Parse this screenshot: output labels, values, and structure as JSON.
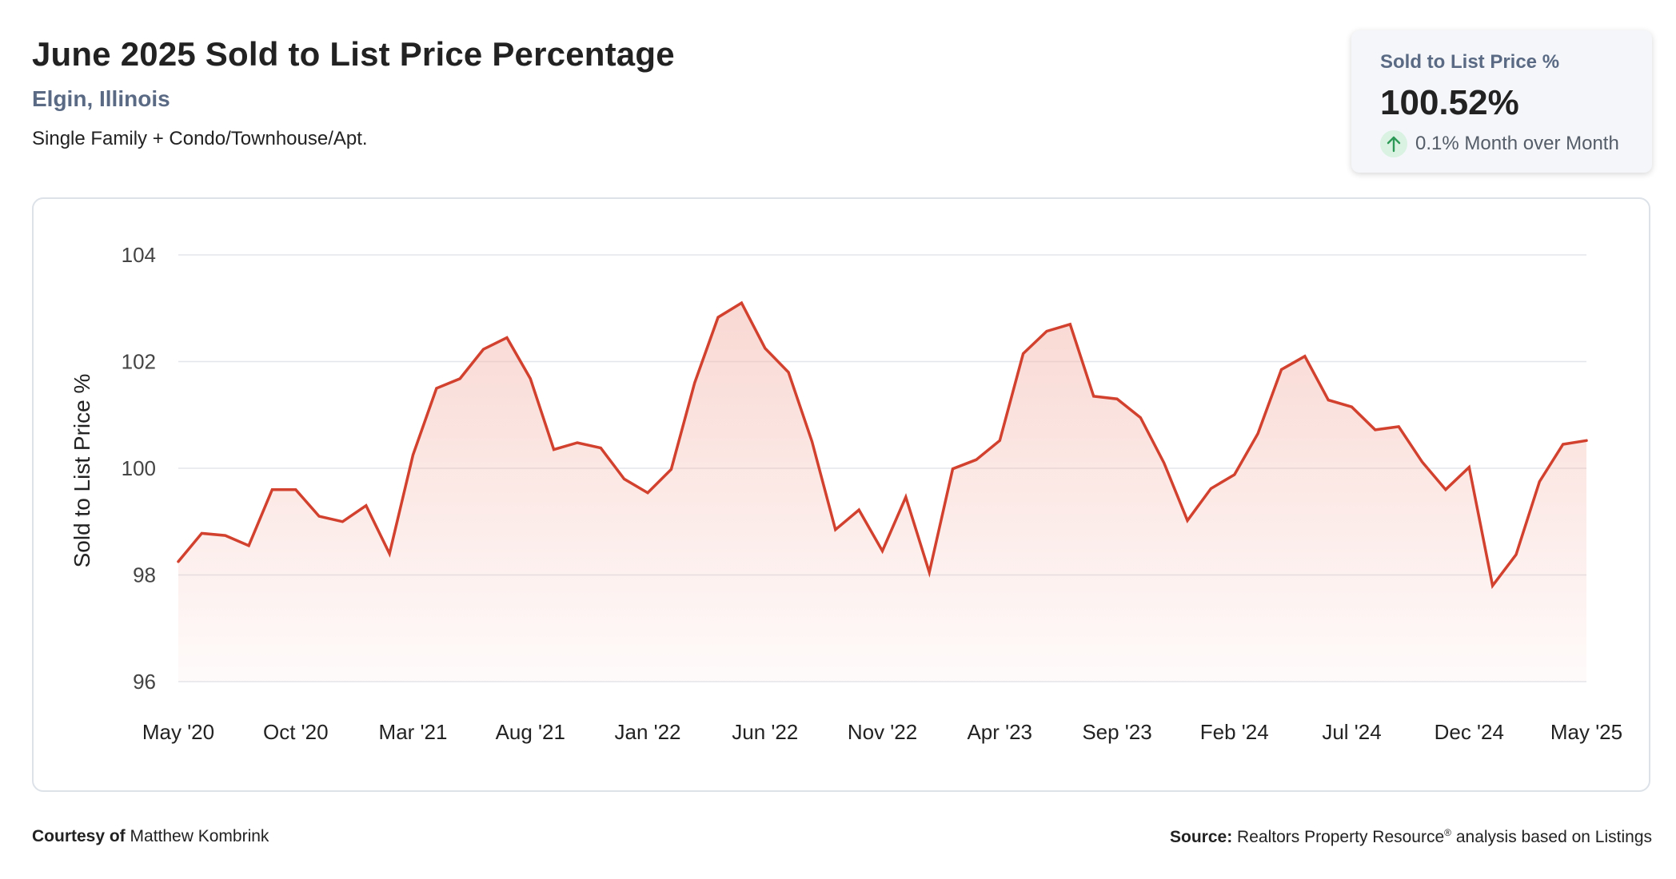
{
  "header": {
    "title": "June 2025 Sold to List Price Percentage",
    "subtitle": "Elgin, Illinois",
    "description": "Single Family + Condo/Townhouse/Apt."
  },
  "kpi": {
    "label": "Sold to List Price %",
    "value": "100.52%",
    "change_text": "0.1% Month over Month",
    "change_icon": "arrow-up-icon",
    "change_color": "#2e9a57"
  },
  "footer": {
    "courtesy_label": "Courtesy of",
    "courtesy_name": "Matthew Kombrink",
    "source_label": "Source:",
    "source_text_a": "Realtors Property Resource",
    "source_sup": "®",
    "source_text_b": "analysis based on Listings"
  },
  "colors": {
    "line": "#d2402e",
    "fill_top": "#f4b8ae",
    "grid": "#e3e6ea"
  },
  "chart_data": {
    "type": "area",
    "ylabel": "Sold to List Price %",
    "ylim": [
      96,
      104
    ],
    "yticks": [
      104,
      102,
      100,
      98,
      96
    ],
    "xtick_labels": [
      "May '20",
      "Oct '20",
      "Mar '21",
      "Aug '21",
      "Jan '22",
      "Jun '22",
      "Nov '22",
      "Apr '23",
      "Sep '23",
      "Feb '24",
      "Jul '24",
      "Dec '24",
      "May '25"
    ],
    "grid": true,
    "x": [
      "May '20",
      "Jun '20",
      "Jul '20",
      "Aug '20",
      "Sep '20",
      "Oct '20",
      "Nov '20",
      "Dec '20",
      "Jan '21",
      "Feb '21",
      "Mar '21",
      "Apr '21",
      "May '21",
      "Jun '21",
      "Jul '21",
      "Aug '21",
      "Sep '21",
      "Oct '21",
      "Nov '21",
      "Dec '21",
      "Jan '22",
      "Feb '22",
      "Mar '22",
      "Apr '22",
      "May '22",
      "Jun '22",
      "Jul '22",
      "Aug '22",
      "Sep '22",
      "Oct '22",
      "Nov '22",
      "Dec '22",
      "Jan '23",
      "Feb '23",
      "Mar '23",
      "Apr '23",
      "May '23",
      "Jun '23",
      "Jul '23",
      "Aug '23",
      "Sep '23",
      "Oct '23",
      "Nov '23",
      "Dec '23",
      "Jan '24",
      "Feb '24",
      "Mar '24",
      "Apr '24",
      "May '24",
      "Jun '24",
      "Jul '24",
      "Aug '24",
      "Sep '24",
      "Oct '24",
      "Nov '24",
      "Dec '24",
      "Jan '25",
      "Feb '25",
      "Mar '25",
      "Apr '25",
      "May '25"
    ],
    "values": [
      98.25,
      98.78,
      98.74,
      98.55,
      99.6,
      99.6,
      99.1,
      99.0,
      99.3,
      98.4,
      100.25,
      101.5,
      101.68,
      102.23,
      102.45,
      101.68,
      100.35,
      100.48,
      100.38,
      99.8,
      99.54,
      99.98,
      101.6,
      102.83,
      103.1,
      102.25,
      101.8,
      100.5,
      98.85,
      99.22,
      98.45,
      99.46,
      98.05,
      99.99,
      100.16,
      100.52,
      102.15,
      102.57,
      102.7,
      101.35,
      101.3,
      100.95,
      100.1,
      99.02,
      99.62,
      99.88,
      100.65,
      101.85,
      102.1,
      101.28,
      101.15,
      100.72,
      100.78,
      100.12,
      99.6,
      100.02,
      97.8,
      98.38,
      99.75,
      100.45,
      100.52
    ]
  }
}
